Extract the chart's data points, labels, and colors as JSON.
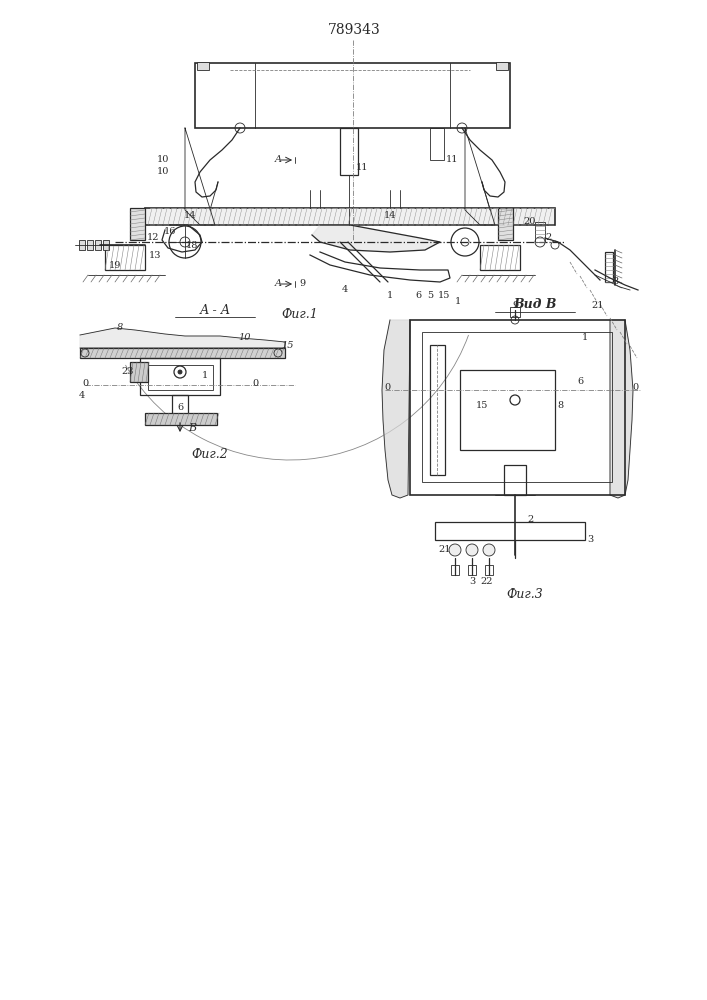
{
  "bg_color": "#ffffff",
  "line_color": "#2a2a2a",
  "patent_number": "789343",
  "fig1_label": "Фиг.1",
  "fig2_label": "Фиг.2",
  "fig3_label": "Фиг.3",
  "view_label": "Вид В",
  "section_label": "А - А",
  "font_size_patent": 10,
  "font_size_labels": 9,
  "font_size_numbers": 8
}
